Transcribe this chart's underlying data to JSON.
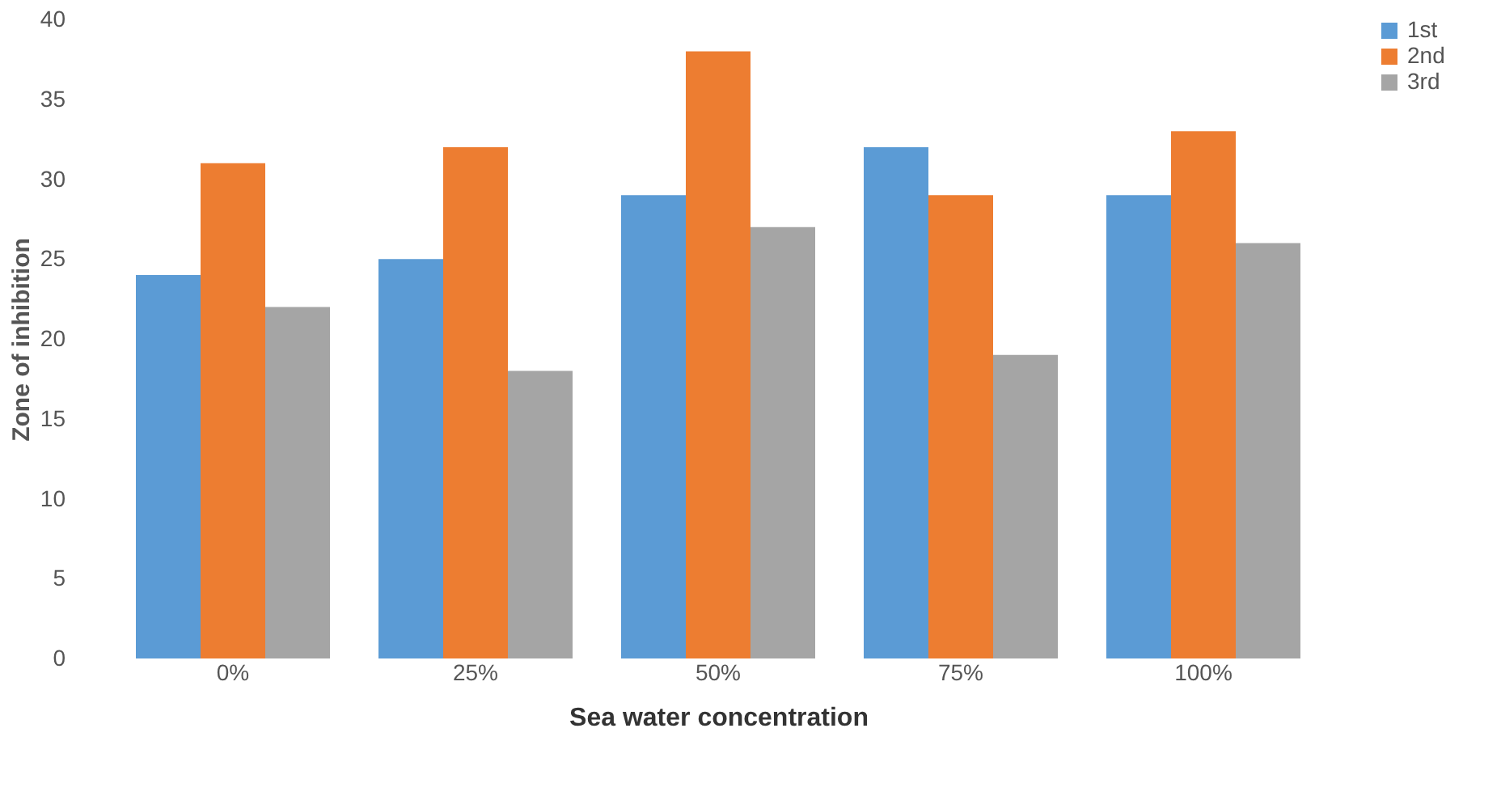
{
  "chart_data": {
    "type": "bar",
    "xlabel": "Sea water concentration",
    "ylabel": "Zone of inhibition",
    "categories": [
      "0%",
      "25%",
      "50%",
      "75%",
      "100%"
    ],
    "series": [
      {
        "name": "1st",
        "color": "#5b9bd5",
        "values": [
          24,
          25,
          29,
          32,
          29
        ]
      },
      {
        "name": "2nd",
        "color": "#ed7d31",
        "values": [
          31,
          32,
          38,
          29,
          33
        ]
      },
      {
        "name": "3rd",
        "color": "#a5a5a5",
        "values": [
          22,
          18,
          27,
          19,
          26
        ]
      }
    ],
    "ylim": [
      0,
      40
    ],
    "yticks": [
      0,
      5,
      10,
      15,
      20,
      25,
      30,
      35,
      40
    ],
    "grid": false,
    "legend": "right"
  }
}
